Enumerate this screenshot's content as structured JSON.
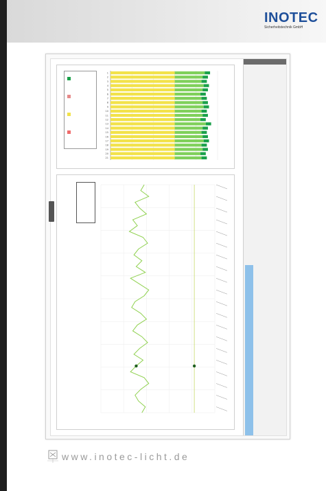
{
  "brand": {
    "name": "INOTEC",
    "subtitle": "Sicherheitstechnik GmbH",
    "color": "#1e4f9a"
  },
  "footer": {
    "url": "www.inotec-licht.de"
  },
  "chart_data": [
    {
      "type": "bar",
      "stacked": true,
      "categories": [
        "1",
        "2",
        "3",
        "4",
        "5",
        "6",
        "7",
        "8",
        "9",
        "10",
        "11",
        "12",
        "13",
        "14",
        "15",
        "16",
        "17",
        "18",
        "19",
        "20",
        "21"
      ],
      "series": [
        {
          "name": "",
          "color": "#f2e24a",
          "values": [
            60,
            60,
            60,
            60,
            60,
            60,
            60,
            60,
            60,
            60,
            60,
            60,
            60,
            60,
            60,
            60,
            60,
            60,
            60,
            60,
            60
          ]
        },
        {
          "name": "",
          "color": "#7fd05a",
          "values": [
            28,
            26,
            25,
            27,
            26,
            24,
            25,
            26,
            27,
            25,
            26,
            24,
            29,
            26,
            25,
            26,
            27,
            25,
            26,
            24,
            25
          ]
        },
        {
          "name": "",
          "color": "#1aa04a",
          "values": [
            5,
            5,
            5,
            5,
            5,
            5,
            5,
            5,
            5,
            5,
            5,
            5,
            5,
            5,
            5,
            5,
            5,
            5,
            5,
            5,
            5
          ]
        }
      ],
      "legend_colors": [
        "#1aa04a",
        "#e68a8a",
        "#f2e24a",
        "#ef6b6b"
      ],
      "ylim": [
        0,
        100
      ],
      "grid": true,
      "legend_placement": "left"
    },
    {
      "type": "line",
      "series": [
        {
          "name": "",
          "color": "#8fd14f",
          "values": [
            62,
            65,
            58,
            70,
            66,
            60,
            72,
            68,
            75,
            63,
            59,
            67,
            71,
            64,
            69,
            61,
            74,
            66,
            58,
            62,
            70,
            73,
            65,
            60,
            68,
            72,
            64,
            59,
            66,
            71,
            63,
            69,
            74,
            62,
            58,
            65,
            70,
            67,
            61,
            64
          ]
        },
        {
          "name": "",
          "color": "#c7d96a",
          "values": [
            18,
            18,
            18,
            18,
            18,
            18,
            18,
            18,
            18,
            18,
            18,
            18,
            18,
            18,
            18,
            18,
            18,
            18,
            18,
            18,
            18,
            18,
            18,
            18,
            18,
            18,
            18,
            18,
            18,
            18,
            18,
            18,
            18,
            18,
            18,
            18,
            18,
            18,
            18,
            18
          ]
        }
      ],
      "markers": [
        {
          "series": 0,
          "index": 31
        },
        {
          "series": 1,
          "index": 31
        }
      ],
      "ylim": [
        0,
        100
      ],
      "grid": true
    }
  ]
}
